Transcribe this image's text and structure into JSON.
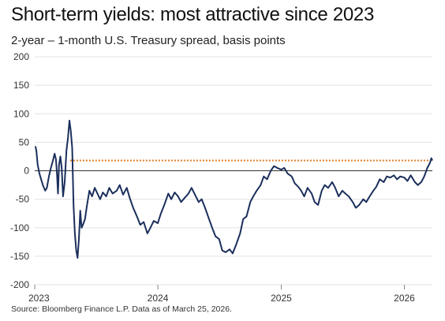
{
  "title": "Short-term yields: most attractive since 2023",
  "subtitle": "2-year – 1-month U.S. Treasury spread, basis points",
  "source": "Source: Bloomberg Finance L.P. Data as of March 25, 2026.",
  "colors": {
    "series": "#1b2f5c",
    "reference": "#e07b1f",
    "grid": "#e3e3e3",
    "zero": "#333333"
  },
  "chart_data": {
    "type": "line",
    "title": "Short-term yields: most attractive since 2023",
    "xlabel": "",
    "ylabel": "2-year – 1-month U.S. Treasury spread, basis points",
    "x_ticks": [
      "2023",
      "2024",
      "2025",
      "2026"
    ],
    "y_ticks": [
      200,
      150,
      100,
      50,
      0,
      -50,
      -100,
      -150,
      -200
    ],
    "xlim": [
      "2023-01-01",
      "2026-03-25"
    ],
    "ylim": [
      -200,
      200
    ],
    "grid": "horizontal",
    "reference_line": {
      "value": 18,
      "style": "dotted"
    },
    "series": [
      {
        "values": [
          [
            "2023-01-03",
            43
          ],
          [
            "2023-01-06",
            35
          ],
          [
            "2023-01-10",
            10
          ],
          [
            "2023-01-15",
            -5
          ],
          [
            "2023-01-20",
            -15
          ],
          [
            "2023-01-25",
            -25
          ],
          [
            "2023-02-01",
            -35
          ],
          [
            "2023-02-06",
            -30
          ],
          [
            "2023-02-12",
            -10
          ],
          [
            "2023-02-18",
            5
          ],
          [
            "2023-02-24",
            18
          ],
          [
            "2023-03-01",
            30
          ],
          [
            "2023-03-05",
            20
          ],
          [
            "2023-03-08",
            -5
          ],
          [
            "2023-03-11",
            -40
          ],
          [
            "2023-03-14",
            10
          ],
          [
            "2023-03-18",
            25
          ],
          [
            "2023-03-22",
            5
          ],
          [
            "2023-03-26",
            -45
          ],
          [
            "2023-03-31",
            -20
          ],
          [
            "2023-04-05",
            35
          ],
          [
            "2023-04-10",
            60
          ],
          [
            "2023-04-14",
            88
          ],
          [
            "2023-04-18",
            70
          ],
          [
            "2023-04-22",
            40
          ],
          [
            "2023-04-26",
            -60
          ],
          [
            "2023-04-30",
            -110
          ],
          [
            "2023-05-04",
            -140
          ],
          [
            "2023-05-08",
            -153
          ],
          [
            "2023-05-12",
            -120
          ],
          [
            "2023-05-16",
            -70
          ],
          [
            "2023-05-20",
            -100
          ],
          [
            "2023-05-24",
            -95
          ],
          [
            "2023-05-30",
            -85
          ],
          [
            "2023-06-05",
            -60
          ],
          [
            "2023-06-12",
            -35
          ],
          [
            "2023-06-20",
            -45
          ],
          [
            "2023-06-28",
            -30
          ],
          [
            "2023-07-06",
            -40
          ],
          [
            "2023-07-14",
            -50
          ],
          [
            "2023-07-22",
            -38
          ],
          [
            "2023-08-01",
            -45
          ],
          [
            "2023-08-10",
            -30
          ],
          [
            "2023-08-20",
            -40
          ],
          [
            "2023-09-01",
            -35
          ],
          [
            "2023-09-10",
            -25
          ],
          [
            "2023-09-20",
            -42
          ],
          [
            "2023-10-01",
            -30
          ],
          [
            "2023-10-10",
            -48
          ],
          [
            "2023-10-20",
            -65
          ],
          [
            "2023-10-31",
            -80
          ],
          [
            "2023-11-10",
            -95
          ],
          [
            "2023-11-20",
            -90
          ],
          [
            "2023-12-01",
            -110
          ],
          [
            "2023-12-10",
            -100
          ],
          [
            "2023-12-20",
            -88
          ],
          [
            "2024-01-01",
            -92
          ],
          [
            "2024-01-10",
            -75
          ],
          [
            "2024-01-20",
            -60
          ],
          [
            "2024-02-01",
            -40
          ],
          [
            "2024-02-10",
            -50
          ],
          [
            "2024-02-20",
            -38
          ],
          [
            "2024-03-01",
            -45
          ],
          [
            "2024-03-10",
            -55
          ],
          [
            "2024-03-20",
            -48
          ],
          [
            "2024-04-01",
            -40
          ],
          [
            "2024-04-10",
            -30
          ],
          [
            "2024-04-20",
            -42
          ],
          [
            "2024-05-01",
            -55
          ],
          [
            "2024-05-10",
            -50
          ],
          [
            "2024-05-20",
            -65
          ],
          [
            "2024-06-01",
            -85
          ],
          [
            "2024-06-10",
            -100
          ],
          [
            "2024-06-20",
            -115
          ],
          [
            "2024-07-01",
            -120
          ],
          [
            "2024-07-10",
            -140
          ],
          [
            "2024-07-20",
            -143
          ],
          [
            "2024-08-01",
            -138
          ],
          [
            "2024-08-10",
            -145
          ],
          [
            "2024-08-20",
            -130
          ],
          [
            "2024-09-01",
            -110
          ],
          [
            "2024-09-10",
            -85
          ],
          [
            "2024-09-20",
            -80
          ],
          [
            "2024-10-01",
            -55
          ],
          [
            "2024-10-10",
            -45
          ],
          [
            "2024-10-20",
            -35
          ],
          [
            "2024-11-01",
            -25
          ],
          [
            "2024-11-10",
            -10
          ],
          [
            "2024-11-20",
            -15
          ],
          [
            "2024-12-01",
            0
          ],
          [
            "2024-12-10",
            8
          ],
          [
            "2024-12-20",
            5
          ],
          [
            "2025-01-01",
            2
          ],
          [
            "2025-01-10",
            5
          ],
          [
            "2025-01-20",
            -5
          ],
          [
            "2025-02-01",
            -10
          ],
          [
            "2025-02-10",
            -22
          ],
          [
            "2025-02-20",
            -28
          ],
          [
            "2025-03-01",
            -35
          ],
          [
            "2025-03-10",
            -45
          ],
          [
            "2025-03-20",
            -30
          ],
          [
            "2025-04-01",
            -40
          ],
          [
            "2025-04-10",
            -55
          ],
          [
            "2025-04-20",
            -60
          ],
          [
            "2025-05-01",
            -35
          ],
          [
            "2025-05-10",
            -25
          ],
          [
            "2025-05-20",
            -30
          ],
          [
            "2025-06-01",
            -20
          ],
          [
            "2025-06-10",
            -30
          ],
          [
            "2025-06-20",
            -45
          ],
          [
            "2025-07-01",
            -35
          ],
          [
            "2025-07-10",
            -40
          ],
          [
            "2025-07-20",
            -45
          ],
          [
            "2025-08-01",
            -55
          ],
          [
            "2025-08-10",
            -65
          ],
          [
            "2025-08-20",
            -60
          ],
          [
            "2025-09-01",
            -50
          ],
          [
            "2025-09-10",
            -55
          ],
          [
            "2025-09-20",
            -45
          ],
          [
            "2025-10-01",
            -35
          ],
          [
            "2025-10-10",
            -28
          ],
          [
            "2025-10-20",
            -15
          ],
          [
            "2025-11-01",
            -20
          ],
          [
            "2025-11-10",
            -10
          ],
          [
            "2025-11-20",
            -12
          ],
          [
            "2025-12-01",
            -8
          ],
          [
            "2025-12-10",
            -15
          ],
          [
            "2025-12-20",
            -10
          ],
          [
            "2026-01-01",
            -12
          ],
          [
            "2026-01-10",
            -18
          ],
          [
            "2026-01-20",
            -8
          ],
          [
            "2026-02-01",
            -20
          ],
          [
            "2026-02-10",
            -25
          ],
          [
            "2026-02-20",
            -20
          ],
          [
            "2026-03-01",
            -10
          ],
          [
            "2026-03-10",
            5
          ],
          [
            "2026-03-18",
            14
          ],
          [
            "2026-03-22",
            22
          ],
          [
            "2026-03-25",
            18
          ]
        ]
      }
    ]
  }
}
